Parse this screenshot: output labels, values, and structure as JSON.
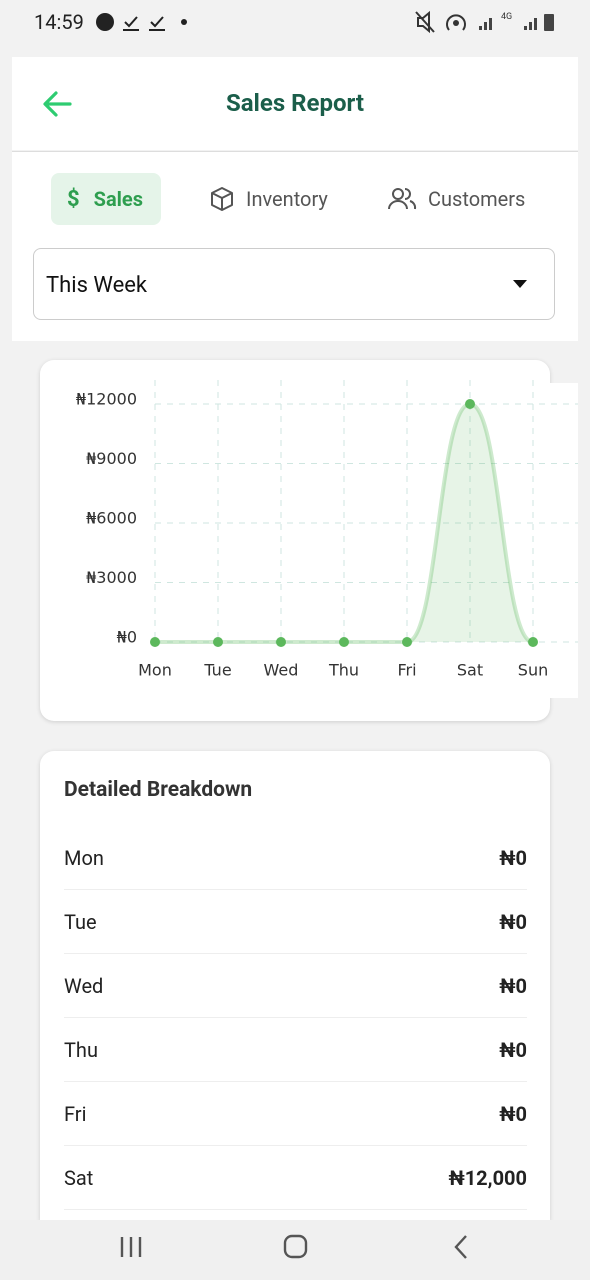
{
  "status_bar": {
    "time": "14:59"
  },
  "header": {
    "title": "Sales Report"
  },
  "tabs": [
    "Sales",
    "Inventory",
    "Customers"
  ],
  "period": "This Week",
  "chart_data": {
    "type": "line",
    "categories": [
      "Mon",
      "Tue",
      "Wed",
      "Thu",
      "Fri",
      "Sat",
      "Sun"
    ],
    "values": [
      0,
      0,
      0,
      0,
      0,
      12000,
      0
    ],
    "color": "#5cb85c",
    "area": true,
    "ylim": [
      0,
      12000
    ],
    "yticks": [
      {
        "value": 0,
        "label": "₦0"
      },
      {
        "value": 3000,
        "label": "₦3000"
      },
      {
        "value": 6000,
        "label": "₦6000"
      },
      {
        "value": 9000,
        "label": "₦9000"
      },
      {
        "value": 12000,
        "label": "₦12000"
      }
    ],
    "grid": true
  },
  "breakdown": {
    "title": "Detailed Breakdown",
    "rows": [
      [
        "Mon",
        "₦0"
      ],
      [
        "Tue",
        "₦0"
      ],
      [
        "Wed",
        "₦0"
      ],
      [
        "Thu",
        "₦0"
      ],
      [
        "Fri",
        "₦0"
      ],
      [
        "Sat",
        "₦12,000"
      ]
    ]
  }
}
